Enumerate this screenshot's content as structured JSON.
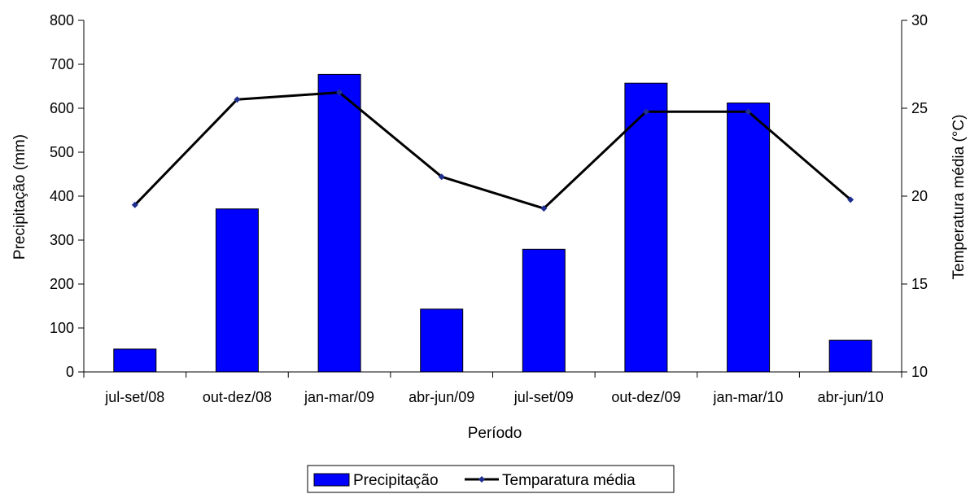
{
  "chart_data": {
    "type": "bar",
    "xlabel": "Período",
    "ylabel_left": "Precipitação (mm)",
    "ylabel_right": "Temperatura média (°C)",
    "categories": [
      "jul-set/08",
      "out-dez/08",
      "jan-mar/09",
      "abr-jun/09",
      "jul-set/09",
      "out-dez/09",
      "jan-mar/10",
      "abr-jun/10"
    ],
    "series": [
      {
        "name": "Precipitação",
        "type": "bar",
        "axis": "left",
        "color": "#0000ff",
        "values": [
          52,
          371,
          677,
          143,
          279,
          657,
          612,
          72
        ]
      },
      {
        "name": "Temparatura média",
        "type": "line",
        "axis": "right",
        "color": "#000000",
        "marker_color": "#1f2f8f",
        "values": [
          19.5,
          25.5,
          25.9,
          21.1,
          19.3,
          24.8,
          24.8,
          19.8
        ]
      }
    ],
    "ylim_left": [
      0,
      800
    ],
    "yticks_left": [
      0,
      100,
      200,
      300,
      400,
      500,
      600,
      700,
      800
    ],
    "ylim_right": [
      10,
      30
    ],
    "yticks_right": [
      10,
      15,
      20,
      25,
      30
    ],
    "grid": false,
    "legend_position": "bottom"
  }
}
